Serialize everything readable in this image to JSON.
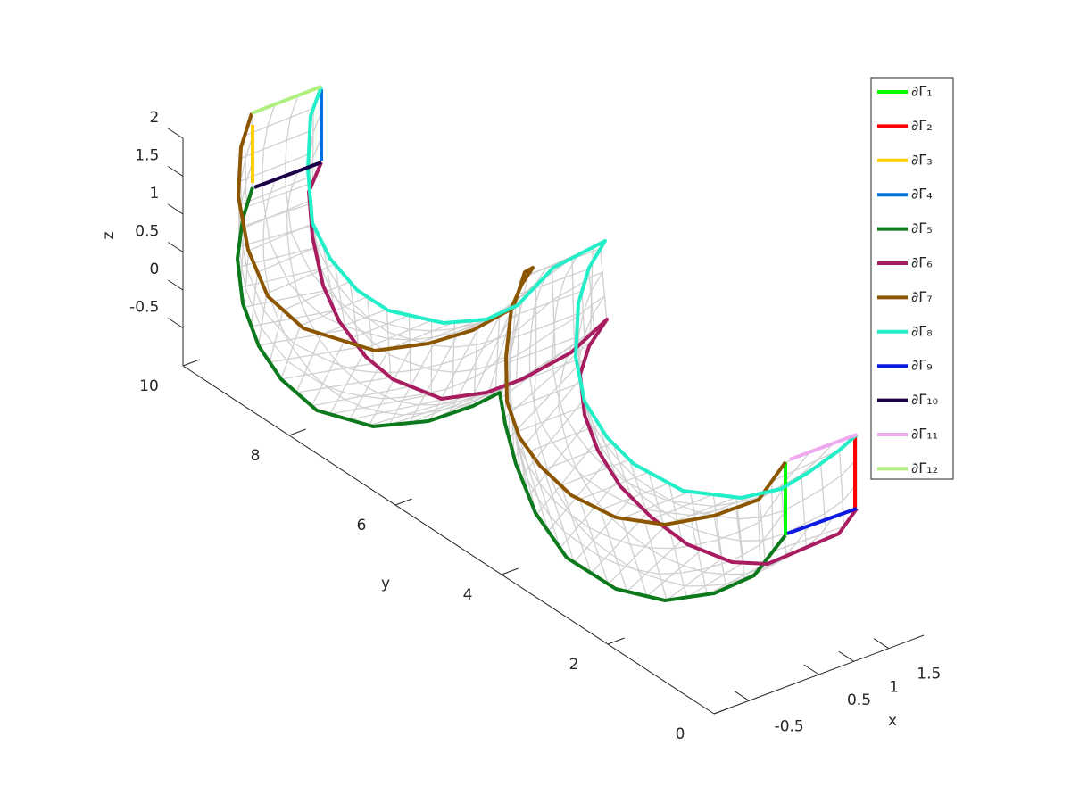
{
  "chart_data": {
    "type": "mesh3d",
    "x_label": "x",
    "y_label": "y",
    "z_label": "z",
    "xlim": [
      -1,
      2
    ],
    "xticks": [
      -0.5,
      0.5,
      1,
      1.5
    ],
    "ylim": [
      0,
      10
    ],
    "yticks": [
      0,
      2,
      4,
      6,
      8,
      10
    ],
    "zlim": [
      -1,
      2
    ],
    "zticks": [
      -0.5,
      0,
      0.5,
      1,
      1.5,
      2
    ],
    "series": [
      {
        "name": "∂Γ₁",
        "color": "#00ff00"
      },
      {
        "name": "∂Γ₂",
        "color": "#ff0000"
      },
      {
        "name": "∂Γ₃",
        "color": "#ffcc00"
      },
      {
        "name": "∂Γ₄",
        "color": "#0073e0"
      },
      {
        "name": "∂Γ₅",
        "color": "#0c7a1c"
      },
      {
        "name": "∂Γ₆",
        "color": "#a81c60"
      },
      {
        "name": "∂Γ₇",
        "color": "#8c5500"
      },
      {
        "name": "∂Γ₈",
        "color": "#22eec8"
      },
      {
        "name": "∂Γ₉",
        "color": "#0a1ae0"
      },
      {
        "name": "∂Γ₁₀",
        "color": "#1c0048"
      },
      {
        "name": "∂Γ₁₁",
        "color": "#f0a8f0"
      },
      {
        "name": "∂Γ₁₂",
        "color": "#b0f080"
      }
    ]
  }
}
